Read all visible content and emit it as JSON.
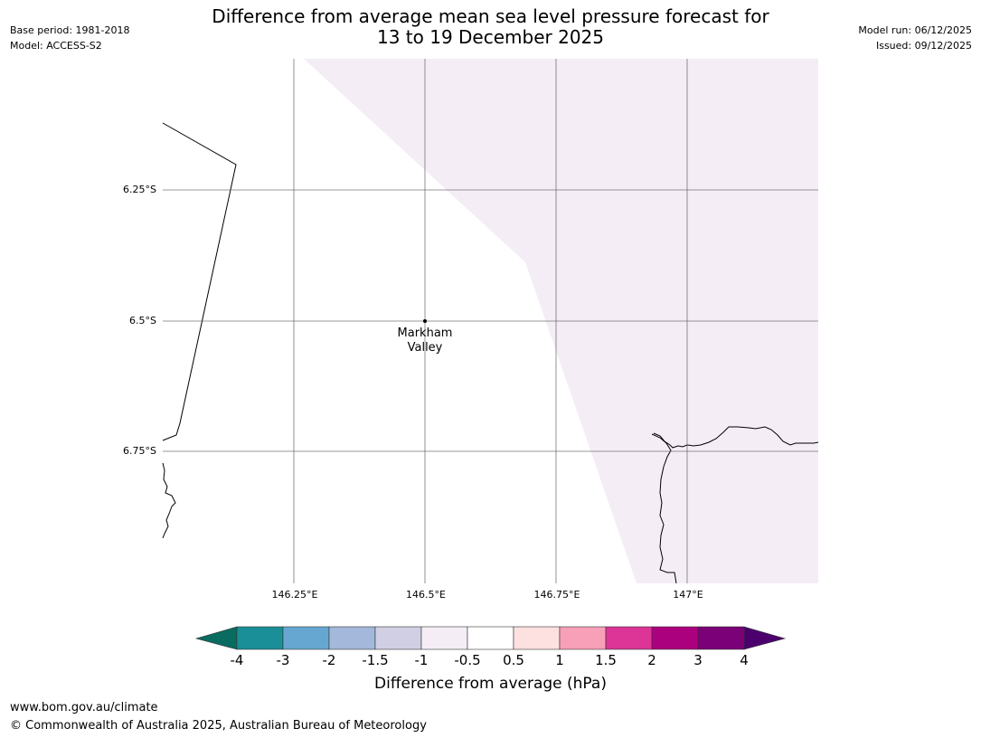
{
  "header": {
    "title_line1": "Difference from average mean sea level pressure forecast for",
    "title_line2": "13 to 19 December 2025",
    "base_period": "Base period: 1981-2018",
    "model": "Model: ACCESS-S2",
    "model_run": "Model run: 06/12/2025",
    "issued": "Issued: 09/12/2025"
  },
  "map": {
    "lat_labels": [
      "6.25°S",
      "6.5°S",
      "6.75°S"
    ],
    "lon_labels": [
      "146.25°E",
      "146.5°E",
      "146.75°E",
      "147°E"
    ],
    "lon_range": [
      146.0,
      147.25
    ],
    "lat_range": [
      -6.0,
      -7.0
    ],
    "place": {
      "name_line1": "Markham",
      "name_line2": "Valley",
      "lon": 146.5,
      "lat": -6.5
    },
    "shaded_class_color": "#f4edf6",
    "background_color": "#ffffff"
  },
  "colorbar": {
    "title": "Difference from average (hPa)",
    "tick_labels": [
      "-4",
      "-3",
      "-2",
      "-1.5",
      "-1",
      "-0.5",
      "0.5",
      "1",
      "1.5",
      "2",
      "3",
      "4"
    ],
    "low_extend_color": "#0a6b60",
    "high_extend_color": "#4b006e",
    "colors": [
      "#1a8f97",
      "#66a7d1",
      "#a3b8da",
      "#d0cfe4",
      "#f4edf6",
      "#ffffff",
      "#fde0e0",
      "#f7a0b7",
      "#dc3497",
      "#ac017e",
      "#7a0177"
    ]
  },
  "footer": {
    "url": "www.bom.gov.au/climate",
    "copyright": "© Commonwealth of Australia 2025, Australian Bureau of Meteorology"
  }
}
